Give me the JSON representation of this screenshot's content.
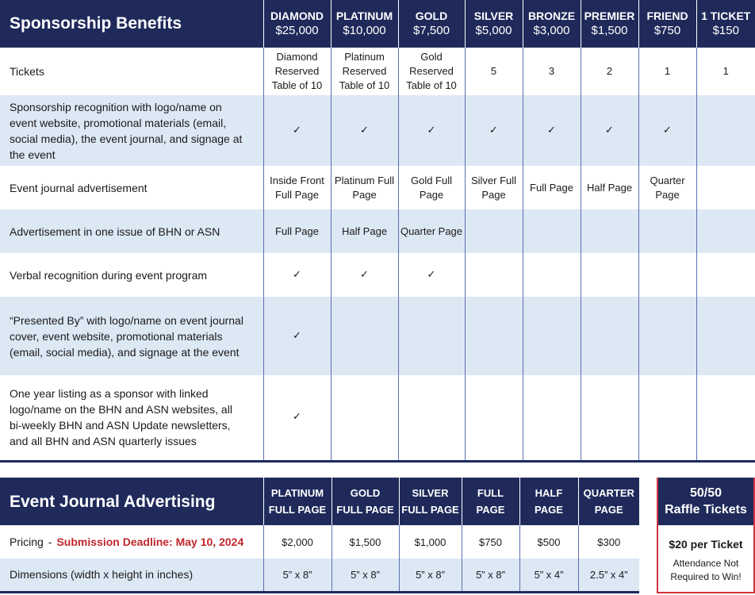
{
  "benefits": {
    "title": "Sponsorship Benefits",
    "tiers": [
      {
        "name": "DIAMOND",
        "price": "$25,000"
      },
      {
        "name": "PLATINUM",
        "price": "$10,000"
      },
      {
        "name": "GOLD",
        "price": "$7,500"
      },
      {
        "name": "SILVER",
        "price": "$5,000"
      },
      {
        "name": "BRONZE",
        "price": "$3,000"
      },
      {
        "name": "PREMIER",
        "price": "$1,500"
      },
      {
        "name": "FRIEND",
        "price": "$750"
      },
      {
        "name": "1 TICKET",
        "price": "$150"
      }
    ],
    "check_symbol": "✓",
    "rows": [
      {
        "label": "Tickets",
        "cells": [
          "Diamond Reserved Table of 10",
          "Platinum Reserved Table of 10",
          "Gold Reserved Table of 10",
          "5",
          "3",
          "2",
          "1",
          "1"
        ]
      },
      {
        "label": "Sponsorship recognition with logo/name on event website, promotional materials (email, social media), the event journal, and signage at the event",
        "cells": [
          "✓",
          "✓",
          "✓",
          "✓",
          "✓",
          "✓",
          "✓",
          ""
        ]
      },
      {
        "label": "Event journal advertisement",
        "cells": [
          "Inside Front Full Page",
          "Platinum Full Page",
          "Gold Full Page",
          "Silver Full Page",
          "Full Page",
          "Half Page",
          "Quarter Page",
          ""
        ]
      },
      {
        "label": "Advertisement in one issue of BHN or ASN",
        "cells": [
          "Full Page",
          "Half Page",
          "Quarter Page",
          "",
          "",
          "",
          "",
          ""
        ]
      },
      {
        "label": "Verbal recognition during event program",
        "cells": [
          "✓",
          "✓",
          "✓",
          "",
          "",
          "",
          "",
          ""
        ]
      },
      {
        "label": "“Presented By” with logo/name on event journal cover, event website, promotional materials (email, social media), and signage at the event",
        "cells": [
          "✓",
          "",
          "",
          "",
          "",
          "",
          "",
          ""
        ]
      },
      {
        "label": "One year listing as a sponsor with linked logo/name on the BHN and ASN websites, all bi-weekly BHN and ASN Update newsletters, and all BHN and ASN quarterly issues",
        "cells": [
          "✓",
          "",
          "",
          "",
          "",
          "",
          "",
          ""
        ]
      }
    ]
  },
  "advertising": {
    "title": "Event Journal Advertising",
    "columns": [
      {
        "line1": "PLATINUM",
        "line2": "FULL PAGE"
      },
      {
        "line1": "GOLD",
        "line2": "FULL PAGE"
      },
      {
        "line1": "SILVER",
        "line2": "FULL PAGE"
      },
      {
        "line1": "FULL",
        "line2": "PAGE"
      },
      {
        "line1": "HALF",
        "line2": "PAGE"
      },
      {
        "line1": "QUARTER",
        "line2": "PAGE"
      }
    ],
    "pricing": {
      "label": "Pricing",
      "separator": "-",
      "deadline": "Submission Deadline: May 10, 2024",
      "values": [
        "$2,000",
        "$1,500",
        "$1,000",
        "$750",
        "$500",
        "$300"
      ]
    },
    "dimensions": {
      "label": "Dimensions  (width x height in inches)",
      "values": [
        "5” x 8”",
        "5” x 8”",
        "5” x 8”",
        "5” x 8”",
        "5” x 4”",
        "2.5” x 4”"
      ]
    }
  },
  "raffle": {
    "title_line1": "50/50",
    "title_line2": "Raffle Tickets",
    "price": "$20 per Ticket",
    "note_line1": "Attendance Not",
    "note_line2": "Required to Win!"
  },
  "colors": {
    "navy": "#1f2a5b",
    "shade": "#dde8f5",
    "deadline_red": "#c0282d",
    "raffle_border": "#d0343b"
  }
}
